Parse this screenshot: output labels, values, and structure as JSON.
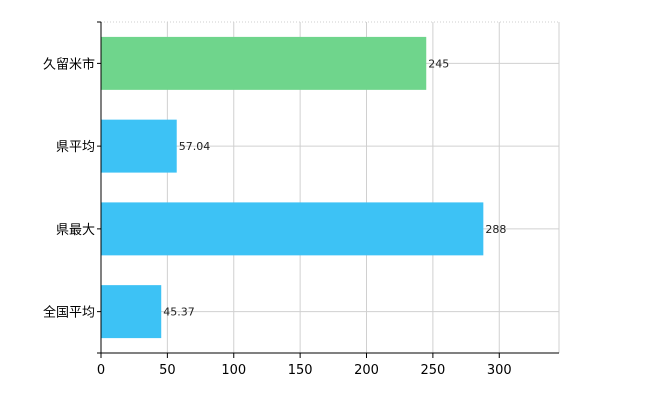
{
  "chart_data": {
    "type": "bar",
    "orientation": "horizontal",
    "categories": [
      "久留米市",
      "県平均",
      "県最大",
      "全国平均"
    ],
    "values": [
      245,
      57.04,
      288,
      45.37
    ],
    "value_labels": [
      "245",
      "57.04",
      "288",
      "45.37"
    ],
    "colors": [
      "#6fd58c",
      "#3dc2f5",
      "#3dc2f5",
      "#3dc2f5"
    ],
    "xlim": [
      0,
      345
    ],
    "xticks": [
      0,
      50,
      100,
      150,
      200,
      250,
      300
    ],
    "xtick_labels": [
      "0",
      "50",
      "100",
      "150",
      "200",
      "250",
      "300"
    ],
    "grid": true,
    "legend": "none"
  }
}
